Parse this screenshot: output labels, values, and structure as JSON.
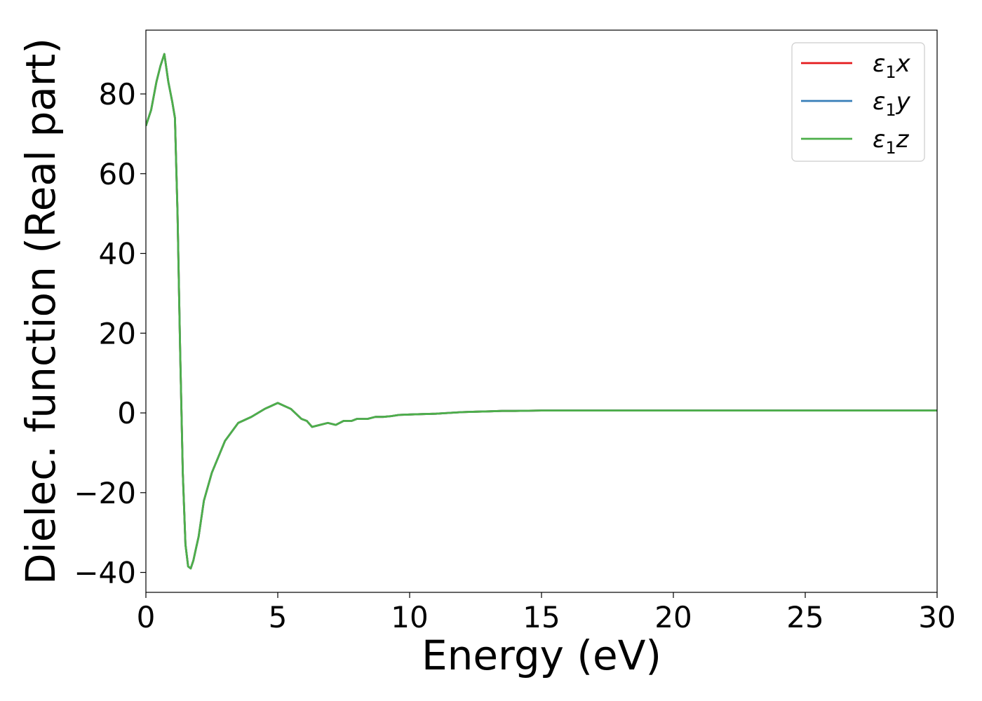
{
  "chart_data": {
    "type": "line",
    "xlabel": "Energy (eV)",
    "ylabel": "Dielec. function (Real part)",
    "xlim": [
      0,
      30
    ],
    "ylim": [
      -45,
      96
    ],
    "xticks": [
      0,
      5,
      10,
      15,
      20,
      25,
      30
    ],
    "yticks": [
      -40,
      -20,
      0,
      20,
      40,
      60,
      80
    ],
    "xtick_labels": [
      "0",
      "5",
      "10",
      "15",
      "20",
      "25",
      "30"
    ],
    "ytick_labels": [
      "−40",
      "−20",
      "0",
      "20",
      "40",
      "60",
      "80"
    ],
    "grid": false,
    "legend_position": "top-right",
    "x": [
      0,
      0.2,
      0.4,
      0.55,
      0.7,
      0.85,
      1.0,
      1.1,
      1.2,
      1.3,
      1.4,
      1.5,
      1.6,
      1.7,
      1.8,
      1.9,
      2.0,
      2.2,
      2.5,
      3.0,
      3.5,
      4.0,
      4.5,
      5.0,
      5.5,
      5.9,
      6.1,
      6.3,
      6.6,
      6.9,
      7.2,
      7.5,
      7.8,
      8.0,
      8.2,
      8.4,
      8.7,
      9.0,
      9.3,
      9.6,
      10.0,
      10.5,
      11.0,
      11.5,
      12.0,
      12.5,
      13.0,
      13.5,
      14.0,
      15.0,
      16.0,
      17.0,
      18.0,
      20.0,
      22.0,
      25.0,
      30.0
    ],
    "series": [
      {
        "name": "ε₁x",
        "color": "#e41a1c",
        "values": [
          72,
          76,
          83,
          87,
          90,
          83,
          78,
          74,
          50,
          15,
          -15,
          -33,
          -38.5,
          -39,
          -37,
          -34,
          -31,
          -22,
          -15,
          -7,
          -2.5,
          -1,
          1,
          2.5,
          1,
          -1.5,
          -2,
          -3.5,
          -3,
          -2.5,
          -3,
          -2,
          -2,
          -1.5,
          -1.5,
          -1.5,
          -1,
          -1,
          -0.8,
          -0.5,
          -0.4,
          -0.3,
          -0.2,
          0,
          0.2,
          0.3,
          0.4,
          0.5,
          0.5,
          0.6,
          0.6,
          0.6,
          0.6,
          0.6,
          0.6,
          0.6,
          0.6
        ]
      },
      {
        "name": "ε₁y",
        "color": "#377eb8",
        "values": [
          72,
          76,
          83,
          87,
          90,
          83,
          78,
          74,
          50,
          15,
          -15,
          -33,
          -38.5,
          -39,
          -37,
          -34,
          -31,
          -22,
          -15,
          -7,
          -2.5,
          -1,
          1,
          2.5,
          1,
          -1.5,
          -2,
          -3.5,
          -3,
          -2.5,
          -3,
          -2,
          -2,
          -1.5,
          -1.5,
          -1.5,
          -1,
          -1,
          -0.8,
          -0.5,
          -0.4,
          -0.3,
          -0.2,
          0,
          0.2,
          0.3,
          0.4,
          0.5,
          0.5,
          0.6,
          0.6,
          0.6,
          0.6,
          0.6,
          0.6,
          0.6,
          0.6
        ]
      },
      {
        "name": "ε₁z",
        "color": "#4daf4a",
        "values": [
          72,
          76,
          83,
          87,
          90,
          83,
          78,
          74,
          50,
          15,
          -15,
          -33,
          -38.5,
          -39,
          -37,
          -34,
          -31,
          -22,
          -15,
          -7,
          -2.5,
          -1,
          1,
          2.5,
          1,
          -1.5,
          -2,
          -3.5,
          -3,
          -2.5,
          -3,
          -2,
          -2,
          -1.5,
          -1.5,
          -1.5,
          -1,
          -1,
          -0.8,
          -0.5,
          -0.4,
          -0.3,
          -0.2,
          0,
          0.2,
          0.3,
          0.4,
          0.5,
          0.5,
          0.6,
          0.6,
          0.6,
          0.6,
          0.6,
          0.6,
          0.6,
          0.6
        ]
      }
    ],
    "legend": [
      {
        "symbol": "ε",
        "sub": "1",
        "axis": "x"
      },
      {
        "symbol": "ε",
        "sub": "1",
        "axis": "y"
      },
      {
        "symbol": "ε",
        "sub": "1",
        "axis": "z"
      }
    ]
  }
}
